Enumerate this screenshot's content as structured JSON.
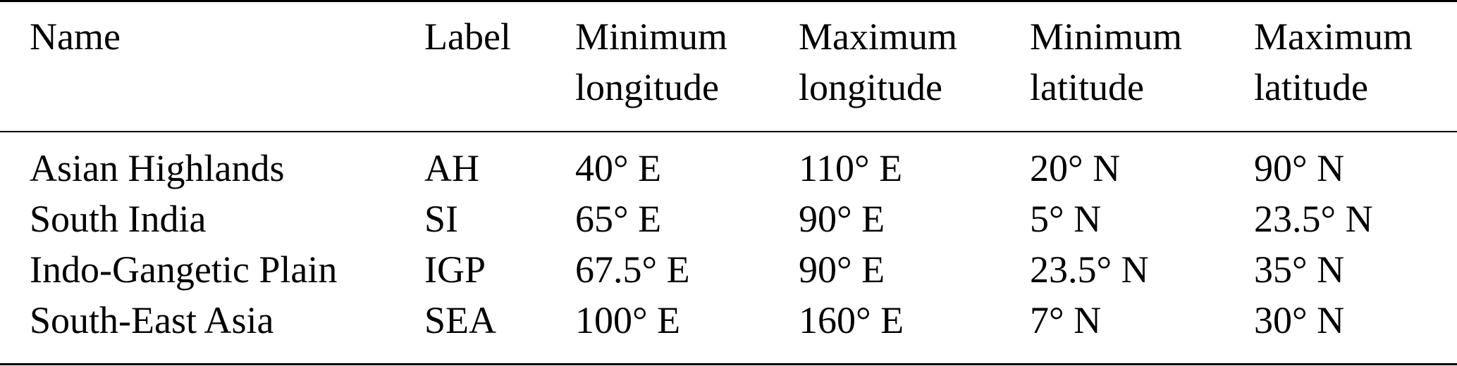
{
  "table": {
    "headers": [
      [
        "Name"
      ],
      [
        "Label"
      ],
      [
        "Minimum",
        "longitude"
      ],
      [
        "Maximum",
        "longitude"
      ],
      [
        "Minimum",
        "latitude"
      ],
      [
        "Maximum",
        "latitude"
      ]
    ],
    "rows": [
      [
        "Asian Highlands",
        "AH",
        "40° E",
        "110° E",
        "20° N",
        "90° N"
      ],
      [
        "South India",
        "SI",
        "65° E",
        "90° E",
        "5° N",
        "23.5° N"
      ],
      [
        "Indo-Gangetic Plain",
        "IGP",
        "67.5° E",
        "90° E",
        "23.5° N",
        "35° N"
      ],
      [
        "South-East Asia",
        "SEA",
        "100° E",
        "160° E",
        "7° N",
        "30° N"
      ]
    ]
  }
}
